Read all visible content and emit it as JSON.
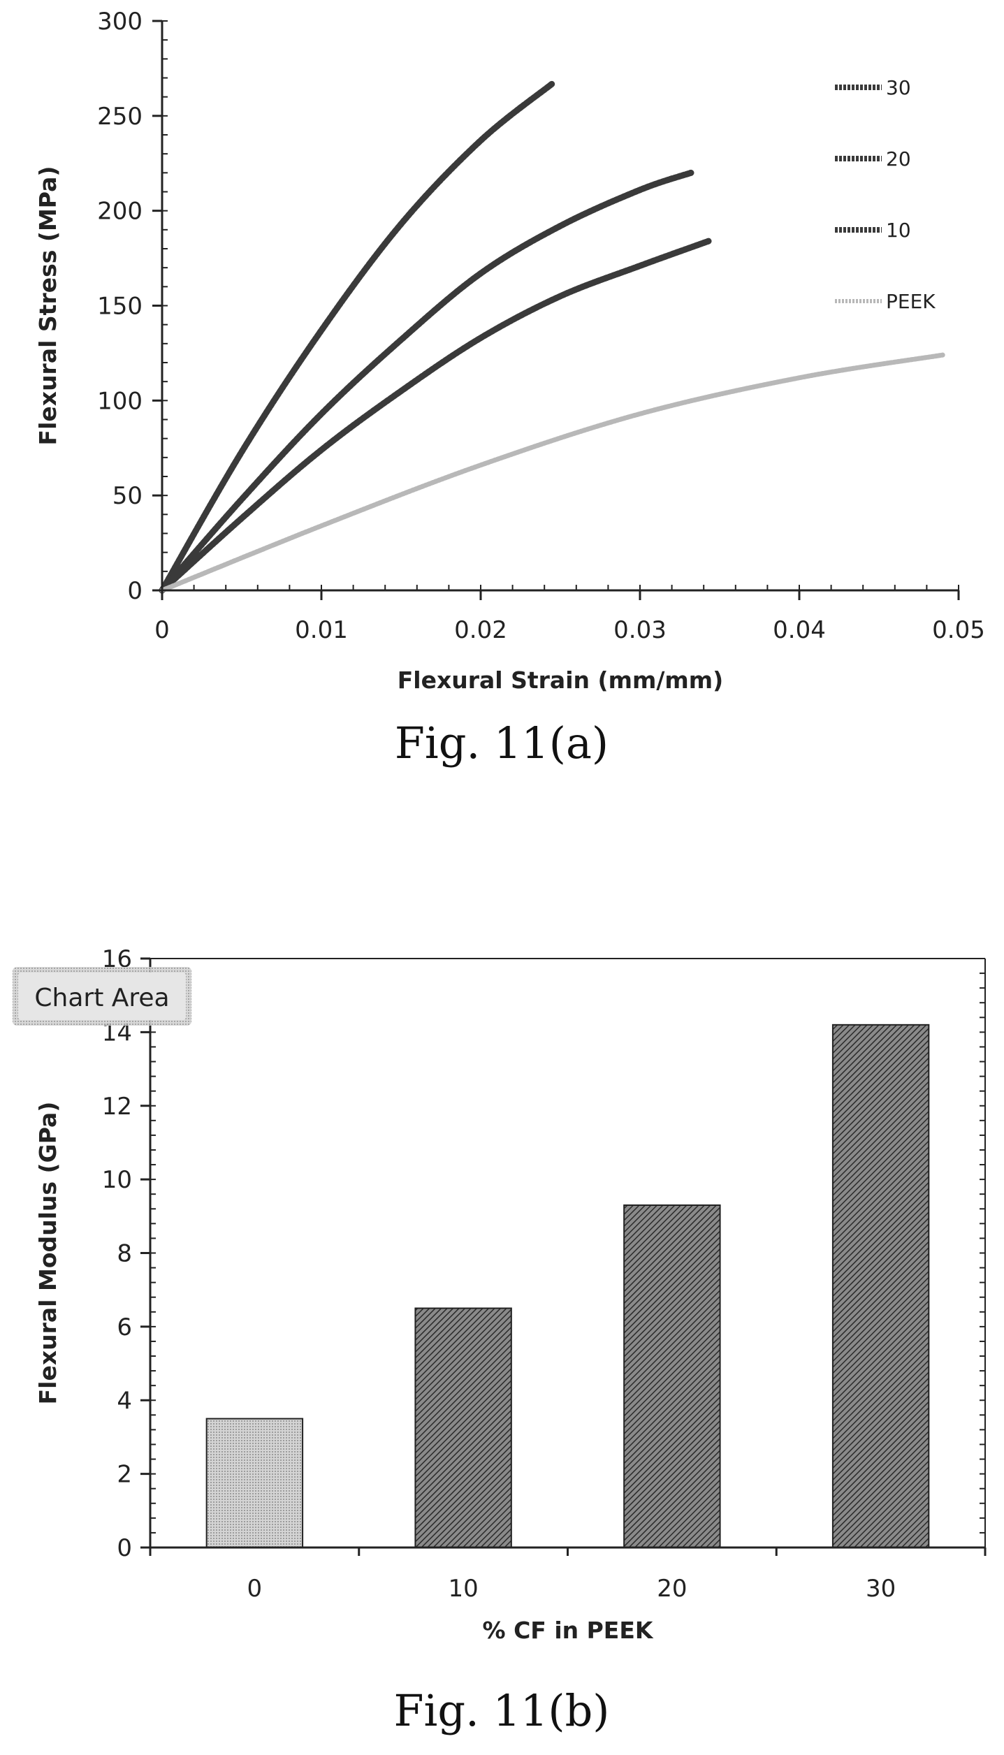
{
  "figure_a": {
    "caption": "Fig. 11(a)"
  },
  "figure_b": {
    "caption": "Fig. 11(b)",
    "overlay_label": "Chart Area"
  },
  "colors": {
    "axis": "#222222",
    "series_dark": "#3a3a3a",
    "series_peek": "#b8b8b8",
    "bar_dark": "#555555",
    "bar_light": "#c8c8c8",
    "badge_bg": "#d9d9d9"
  },
  "chart_data": [
    {
      "type": "line",
      "xlabel": "Flexural Strain (mm/mm)",
      "ylabel": "Flexural Stress   (MPa)",
      "xlim": [
        0,
        0.05
      ],
      "ylim": [
        0,
        300
      ],
      "xticks": [
        0,
        0.01,
        0.02,
        0.03,
        0.04,
        0.05
      ],
      "xtick_labels": [
        "0",
        "0.01",
        "0.02",
        "0.03",
        "0.04",
        "0.05"
      ],
      "yticks": [
        0,
        50,
        100,
        150,
        200,
        250,
        300
      ],
      "ytick_labels": [
        "0",
        "50",
        "100",
        "150",
        "200",
        "250",
        "300"
      ],
      "grid": false,
      "legend_placement": "top-right",
      "series": [
        {
          "name": "30",
          "x": [
            0,
            0.005,
            0.01,
            0.015,
            0.02,
            0.0245
          ],
          "y": [
            0,
            73,
            137,
            193,
            237,
            267
          ]
        },
        {
          "name": "20",
          "x": [
            0,
            0.005,
            0.01,
            0.015,
            0.02,
            0.025,
            0.03,
            0.0332
          ],
          "y": [
            0,
            48,
            93,
            132,
            167,
            192,
            211,
            220
          ]
        },
        {
          "name": "10",
          "x": [
            0,
            0.005,
            0.01,
            0.015,
            0.02,
            0.025,
            0.03,
            0.0343
          ],
          "y": [
            0,
            38,
            74,
            105,
            133,
            155,
            171,
            184
          ]
        },
        {
          "name": "PEEK",
          "x": [
            0,
            0.01,
            0.02,
            0.03,
            0.04,
            0.049
          ],
          "y": [
            0,
            34,
            66,
            93,
            112,
            124
          ]
        }
      ]
    },
    {
      "type": "bar",
      "xlabel": "% CF in PEEK",
      "ylabel": "Flexural Modulus   (GPa)",
      "categories": [
        "0",
        "10",
        "20",
        "30"
      ],
      "values": [
        3.5,
        6.5,
        9.3,
        14.2
      ],
      "ylim": [
        0,
        16
      ],
      "yticks": [
        0,
        2,
        4,
        6,
        8,
        10,
        12,
        14,
        16
      ],
      "ytick_labels": [
        "0",
        "2",
        "4",
        "6",
        "8",
        "10",
        "12",
        "14",
        "16"
      ],
      "grid": false
    }
  ]
}
